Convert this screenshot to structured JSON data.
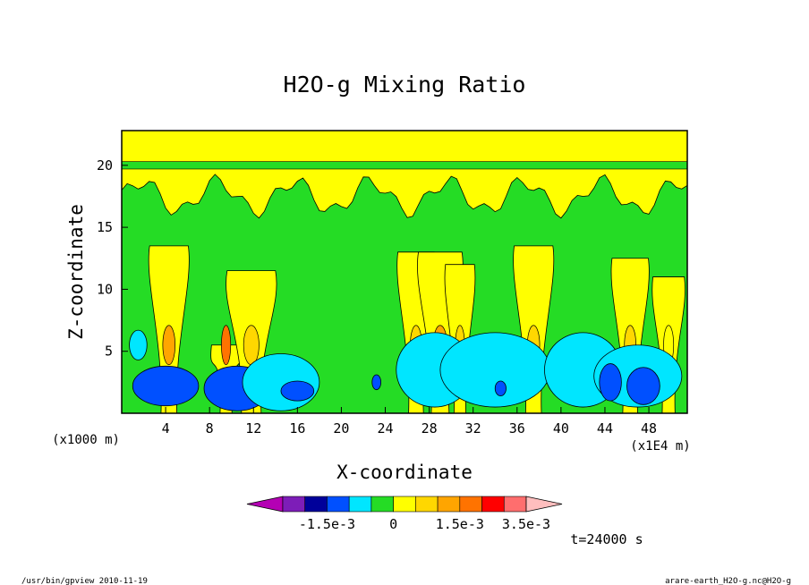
{
  "chart_data": {
    "type": "heatmap",
    "title": "H2O-g Mixing Ratio",
    "xlabel": "X-coordinate",
    "ylabel": "Z-coordinate",
    "x_unit": "(x1E4 m)",
    "y_unit": "(x1000 m)",
    "xlim": [
      0,
      51.5
    ],
    "ylim": [
      0,
      22.8
    ],
    "x_ticks": [
      "4",
      "8",
      "12",
      "16",
      "20",
      "24",
      "28",
      "32",
      "36",
      "40",
      "44",
      "48"
    ],
    "y_ticks": [
      "5",
      "10",
      "15",
      "20"
    ],
    "x_tick_values": [
      4,
      8,
      12,
      16,
      20,
      24,
      28,
      32,
      36,
      40,
      44,
      48
    ],
    "y_tick_values": [
      5,
      10,
      15,
      20
    ],
    "colorbar": {
      "colors": [
        "#b400b4",
        "#7d1db8",
        "#00009a",
        "#0050ff",
        "#00e6ff",
        "#25dc25",
        "#ffff00",
        "#ffd700",
        "#ffa500",
        "#ff7300",
        "#ff0000",
        "#ff6e6e",
        "#ffbebe"
      ],
      "labels": [
        "-1.5e-3",
        "0",
        "1.5e-3",
        "3.5e-3"
      ],
      "label_index": [
        2,
        5,
        8,
        11
      ]
    },
    "time_label": "t=24000 s",
    "plumes": [
      {
        "x": 4.3,
        "top": 13.5,
        "w": 1.6,
        "core": "#ffa500"
      },
      {
        "x": 9.5,
        "top": 5.5,
        "w": 1.2,
        "core": "#ff7300"
      },
      {
        "x": 11.8,
        "top": 11.5,
        "w": 2.0,
        "core": "#ffd700"
      },
      {
        "x": 26.8,
        "top": 13.0,
        "w": 1.5,
        "core": "#ffd700"
      },
      {
        "x": 29.0,
        "top": 13.0,
        "w": 1.8,
        "core": "#ffa500"
      },
      {
        "x": 30.8,
        "top": 12.0,
        "w": 1.2,
        "core": "#ffd700"
      },
      {
        "x": 37.5,
        "top": 13.5,
        "w": 1.6,
        "core": "#ffd700"
      },
      {
        "x": 46.3,
        "top": 12.5,
        "w": 1.5,
        "core": "#ffd700"
      },
      {
        "x": 49.8,
        "top": 11.0,
        "w": 1.3,
        "core": "#ffff00"
      }
    ],
    "low_regions": [
      {
        "x": 4.0,
        "z": 2.2,
        "rx": 3.0,
        "rz": 1.6,
        "color": "#0050ff"
      },
      {
        "x": 10.5,
        "z": 2.0,
        "rx": 3.0,
        "rz": 1.8,
        "color": "#0050ff"
      },
      {
        "x": 14.5,
        "z": 2.5,
        "rx": 3.5,
        "rz": 2.3,
        "color": "#00e6ff"
      },
      {
        "x": 16.0,
        "z": 1.8,
        "rx": 1.5,
        "rz": 0.8,
        "color": "#0050ff"
      },
      {
        "x": 28.5,
        "z": 3.5,
        "rx": 3.5,
        "rz": 3.0,
        "color": "#00e6ff"
      },
      {
        "x": 34.0,
        "z": 3.5,
        "rx": 5.0,
        "rz": 3.0,
        "color": "#00e6ff"
      },
      {
        "x": 42.0,
        "z": 3.5,
        "rx": 3.5,
        "rz": 3.0,
        "color": "#00e6ff"
      },
      {
        "x": 47.0,
        "z": 3.0,
        "rx": 4.0,
        "rz": 2.5,
        "color": "#00e6ff"
      },
      {
        "x": 44.5,
        "z": 2.5,
        "rx": 1.0,
        "rz": 1.5,
        "color": "#0050ff"
      },
      {
        "x": 47.5,
        "z": 2.2,
        "rx": 1.5,
        "rz": 1.5,
        "color": "#0050ff"
      },
      {
        "x": 34.5,
        "z": 2.0,
        "rx": 0.5,
        "rz": 0.6,
        "color": "#0050ff"
      },
      {
        "x": 23.2,
        "z": 2.5,
        "rx": 0.4,
        "rz": 0.6,
        "color": "#0050ff"
      },
      {
        "x": 1.5,
        "z": 5.5,
        "rx": 0.8,
        "rz": 1.2,
        "color": "#00e6ff"
      }
    ]
  },
  "footer": {
    "left": "/usr/bin/gpview  2010-11-19",
    "right": "arare-earth_H2O-g.nc@H2O-g"
  }
}
